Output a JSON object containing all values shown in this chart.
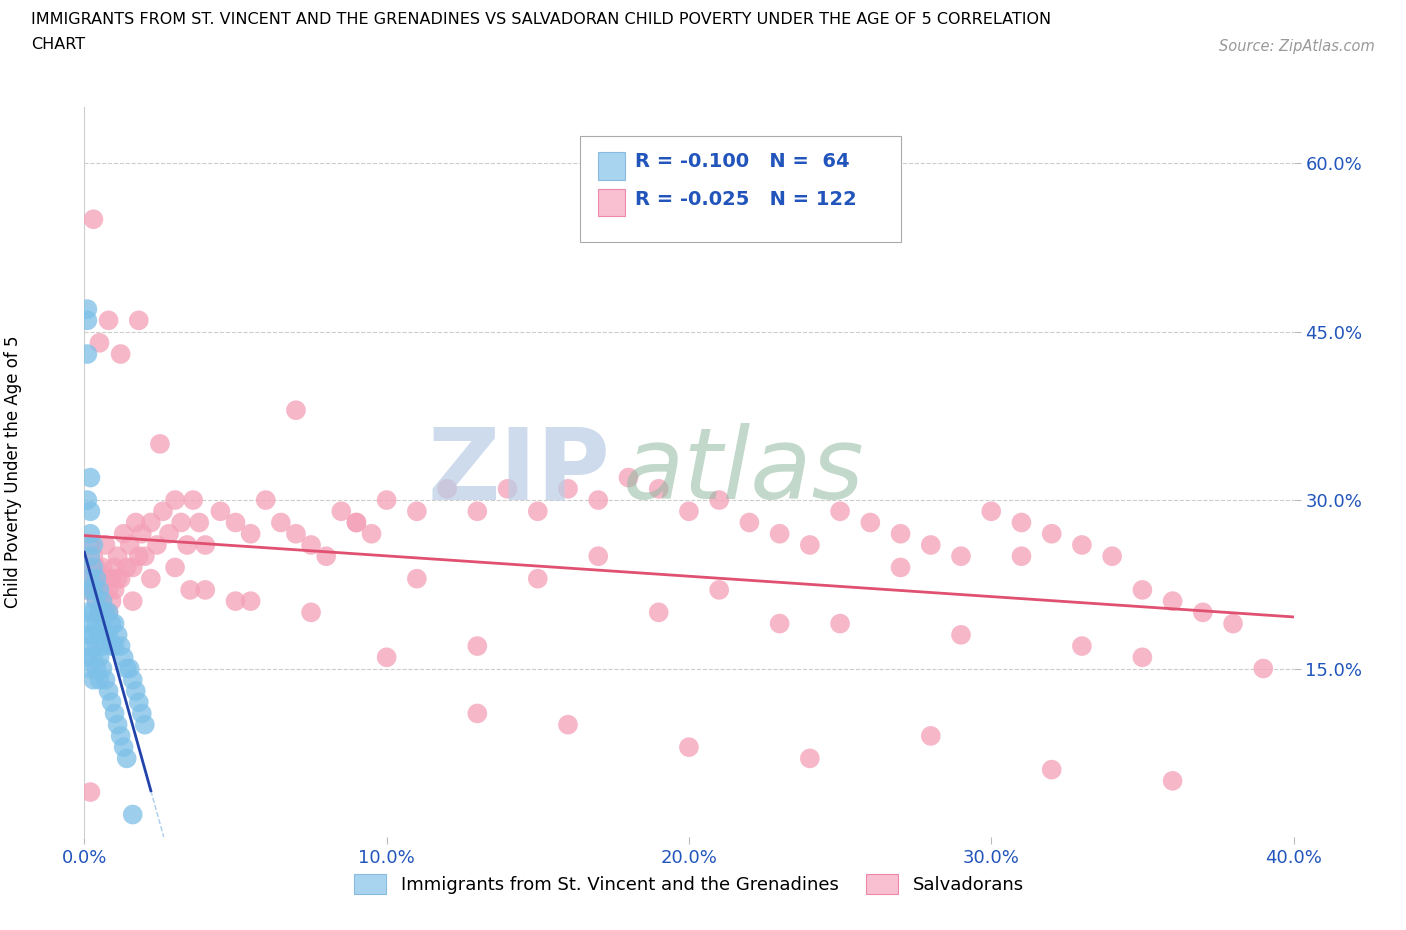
{
  "title_line1": "IMMIGRANTS FROM ST. VINCENT AND THE GRENADINES VS SALVADORAN CHILD POVERTY UNDER THE AGE OF 5 CORRELATION",
  "title_line2": "CHART",
  "source_text": "Source: ZipAtlas.com",
  "ylabel": "Child Poverty Under the Age of 5",
  "xlim": [
    0.0,
    0.4
  ],
  "ylim": [
    0.0,
    0.65
  ],
  "ytick_labels": [
    "15.0%",
    "30.0%",
    "45.0%",
    "60.0%"
  ],
  "ytick_vals": [
    0.15,
    0.3,
    0.45,
    0.6
  ],
  "xtick_labels": [
    "0.0%",
    "10.0%",
    "20.0%",
    "30.0%",
    "40.0%"
  ],
  "xtick_vals": [
    0.0,
    0.1,
    0.2,
    0.3,
    0.4
  ],
  "blue_dot_color": "#7DC0E8",
  "pink_dot_color": "#F4A0B8",
  "blue_line_color": "#2244AA",
  "pink_line_color": "#E05070",
  "blue_legend_color": "#A8D4F0",
  "pink_legend_color": "#F8C0D0",
  "grid_color": "#CCCCCC",
  "watermark_zip_color": "#B8CCE4",
  "watermark_atlas_color": "#90B8A0",
  "legend_label_blue": "Immigrants from St. Vincent and the Grenadines",
  "legend_label_pink": "Salvadorans",
  "blue_x": [
    0.001,
    0.001,
    0.001,
    0.001,
    0.002,
    0.002,
    0.002,
    0.002,
    0.002,
    0.003,
    0.003,
    0.003,
    0.003,
    0.004,
    0.004,
    0.004,
    0.005,
    0.005,
    0.005,
    0.006,
    0.006,
    0.006,
    0.007,
    0.007,
    0.008,
    0.008,
    0.009,
    0.009,
    0.01,
    0.01,
    0.011,
    0.012,
    0.013,
    0.014,
    0.015,
    0.016,
    0.017,
    0.018,
    0.019,
    0.02,
    0.001,
    0.001,
    0.001,
    0.001,
    0.002,
    0.002,
    0.002,
    0.003,
    0.003,
    0.003,
    0.004,
    0.004,
    0.005,
    0.005,
    0.006,
    0.007,
    0.008,
    0.009,
    0.01,
    0.011,
    0.012,
    0.013,
    0.014,
    0.016
  ],
  "blue_y": [
    0.47,
    0.46,
    0.43,
    0.3,
    0.32,
    0.29,
    0.27,
    0.25,
    0.23,
    0.26,
    0.24,
    0.22,
    0.2,
    0.23,
    0.21,
    0.19,
    0.22,
    0.2,
    0.18,
    0.21,
    0.19,
    0.17,
    0.2,
    0.18,
    0.2,
    0.18,
    0.19,
    0.17,
    0.19,
    0.17,
    0.18,
    0.17,
    0.16,
    0.15,
    0.15,
    0.14,
    0.13,
    0.12,
    0.11,
    0.1,
    0.22,
    0.2,
    0.18,
    0.16,
    0.19,
    0.17,
    0.15,
    0.18,
    0.16,
    0.14,
    0.17,
    0.15,
    0.16,
    0.14,
    0.15,
    0.14,
    0.13,
    0.12,
    0.11,
    0.1,
    0.09,
    0.08,
    0.07,
    0.02
  ],
  "pink_x": [
    0.001,
    0.001,
    0.002,
    0.002,
    0.003,
    0.003,
    0.004,
    0.004,
    0.005,
    0.005,
    0.006,
    0.006,
    0.007,
    0.007,
    0.008,
    0.008,
    0.009,
    0.009,
    0.01,
    0.01,
    0.011,
    0.012,
    0.013,
    0.014,
    0.015,
    0.016,
    0.017,
    0.018,
    0.019,
    0.02,
    0.022,
    0.024,
    0.026,
    0.028,
    0.03,
    0.032,
    0.034,
    0.036,
    0.038,
    0.04,
    0.045,
    0.05,
    0.055,
    0.06,
    0.065,
    0.07,
    0.075,
    0.08,
    0.085,
    0.09,
    0.095,
    0.1,
    0.11,
    0.12,
    0.13,
    0.14,
    0.15,
    0.16,
    0.17,
    0.18,
    0.19,
    0.2,
    0.21,
    0.22,
    0.23,
    0.24,
    0.25,
    0.26,
    0.27,
    0.28,
    0.29,
    0.3,
    0.31,
    0.32,
    0.33,
    0.34,
    0.35,
    0.36,
    0.37,
    0.38,
    0.39,
    0.003,
    0.005,
    0.008,
    0.012,
    0.018,
    0.025,
    0.035,
    0.05,
    0.07,
    0.09,
    0.11,
    0.13,
    0.15,
    0.17,
    0.19,
    0.21,
    0.23,
    0.25,
    0.27,
    0.29,
    0.31,
    0.33,
    0.35,
    0.004,
    0.007,
    0.011,
    0.016,
    0.022,
    0.03,
    0.04,
    0.055,
    0.075,
    0.1,
    0.13,
    0.16,
    0.2,
    0.24,
    0.28,
    0.32,
    0.36,
    0.002
  ],
  "pink_y": [
    0.24,
    0.22,
    0.26,
    0.23,
    0.25,
    0.22,
    0.24,
    0.21,
    0.23,
    0.2,
    0.24,
    0.21,
    0.23,
    0.2,
    0.22,
    0.2,
    0.23,
    0.21,
    0.24,
    0.22,
    0.25,
    0.23,
    0.27,
    0.24,
    0.26,
    0.24,
    0.28,
    0.25,
    0.27,
    0.25,
    0.28,
    0.26,
    0.29,
    0.27,
    0.3,
    0.28,
    0.26,
    0.3,
    0.28,
    0.26,
    0.29,
    0.28,
    0.27,
    0.3,
    0.28,
    0.27,
    0.26,
    0.25,
    0.29,
    0.28,
    0.27,
    0.3,
    0.29,
    0.31,
    0.29,
    0.31,
    0.29,
    0.31,
    0.3,
    0.32,
    0.31,
    0.29,
    0.3,
    0.28,
    0.27,
    0.26,
    0.29,
    0.28,
    0.27,
    0.26,
    0.25,
    0.29,
    0.28,
    0.27,
    0.26,
    0.25,
    0.22,
    0.21,
    0.2,
    0.19,
    0.15,
    0.55,
    0.44,
    0.46,
    0.43,
    0.46,
    0.35,
    0.22,
    0.21,
    0.38,
    0.28,
    0.23,
    0.17,
    0.23,
    0.25,
    0.2,
    0.22,
    0.19,
    0.19,
    0.24,
    0.18,
    0.25,
    0.17,
    0.16,
    0.22,
    0.26,
    0.23,
    0.21,
    0.23,
    0.24,
    0.22,
    0.21,
    0.2,
    0.16,
    0.11,
    0.1,
    0.08,
    0.07,
    0.09,
    0.06,
    0.05,
    0.04
  ]
}
